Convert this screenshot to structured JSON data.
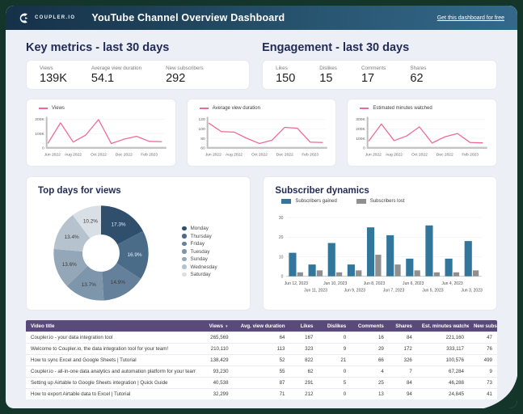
{
  "header": {
    "logo_text": "COUPLER.IO",
    "title": "YouTube Channel Overview Dashboard",
    "link_label": "Get this dashboard for free"
  },
  "colors": {
    "accent_pink": "#ec6a94",
    "bar_blue": "#33769b",
    "bar_gray": "#8f8f8f",
    "table_header": "#5a4a79",
    "frame_green": "#14362a",
    "title_navy": "#222c57"
  },
  "key_metrics": {
    "title": "Key metrics - last 30 days",
    "metrics": [
      {
        "label": "Views",
        "value": "139K"
      },
      {
        "label": "Average view duration",
        "value": "54.1"
      },
      {
        "label": "New subscribers",
        "value": "292"
      }
    ]
  },
  "engagement": {
    "title": "Engagement - last 30 days",
    "metrics": [
      {
        "label": "Likes",
        "value": "150"
      },
      {
        "label": "Dislikes",
        "value": "15"
      },
      {
        "label": "Comments",
        "value": "17"
      },
      {
        "label": "Shares",
        "value": "62"
      }
    ]
  },
  "chart_data": [
    {
      "type": "line",
      "title": "Views",
      "color": "#ec6a94",
      "x": [
        "Jun 2022",
        "Jul 2022",
        "Aug 2022",
        "Sep 2022",
        "Oct 2022",
        "Nov 2022",
        "Dec 2022",
        "Jan 2023",
        "Feb 2023",
        "Mar 2023"
      ],
      "values": [
        30000,
        175000,
        40000,
        90000,
        198000,
        30000,
        60000,
        80000,
        45000,
        43000
      ],
      "ylim": [
        0,
        200000
      ],
      "yticks": [
        0,
        100000,
        200000
      ],
      "ytick_labels": [
        "0",
        "100K",
        "200K"
      ],
      "xtick_idx": [
        0,
        2,
        4,
        6,
        8
      ],
      "xtick_labels": [
        "Jun 2022",
        "Aug 2022",
        "Oct 2022",
        "Dec 2022",
        "Feb 2023"
      ]
    },
    {
      "type": "line",
      "title": "Average view duration",
      "color": "#ec6a94",
      "x": [
        "Jun 2022",
        "Jul 2022",
        "Aug 2022",
        "Sep 2022",
        "Oct 2022",
        "Nov 2022",
        "Dec 2022",
        "Jan 2023",
        "Feb 2023",
        "Mar 2023"
      ],
      "values": [
        112,
        94,
        93,
        80,
        69,
        76,
        103,
        101,
        72,
        71
      ],
      "ylim": [
        60,
        120
      ],
      "yticks": [
        60,
        80,
        100,
        120
      ],
      "ytick_labels": [
        "60",
        "80",
        "100",
        "120"
      ],
      "xtick_idx": [
        0,
        2,
        4,
        6,
        8
      ],
      "xtick_labels": [
        "Jun 2022",
        "Aug 2022",
        "Oct 2022",
        "Dec 2022",
        "Feb 2023"
      ]
    },
    {
      "type": "line",
      "title": "Estimated minutes watched",
      "color": "#ec6a94",
      "x": [
        "Jun 2022",
        "Jul 2022",
        "Aug 2022",
        "Sep 2022",
        "Oct 2022",
        "Nov 2022",
        "Dec 2022",
        "Jan 2023",
        "Feb 2023",
        "Mar 2023"
      ],
      "values": [
        70000,
        250000,
        75000,
        125000,
        220000,
        50000,
        115000,
        150000,
        55000,
        52000
      ],
      "ylim": [
        0,
        300000
      ],
      "yticks": [
        0,
        100000,
        200000,
        300000
      ],
      "ytick_labels": [
        "0",
        "100K",
        "200K",
        "300K"
      ],
      "xtick_idx": [
        0,
        2,
        4,
        6,
        8
      ],
      "xtick_labels": [
        "Jun 2022",
        "Aug 2022",
        "Oct 2022",
        "Dec 2022",
        "Feb 2023"
      ]
    },
    {
      "type": "pie",
      "title": "Top days for views",
      "labels": [
        "Monday",
        "Thursday",
        "Friday",
        "Tuesday",
        "Sunday",
        "Wednesday",
        "Saturday"
      ],
      "values": [
        17.3,
        16.9,
        14.9,
        13.7,
        13.6,
        13.4,
        10.2
      ],
      "value_labels": [
        "17.3%",
        "16.9%",
        "14.9%",
        "13.7%",
        "13.6%",
        "13.4%",
        "10.2%"
      ],
      "colors": [
        "#2f4f6d",
        "#4a6c88",
        "#64809a",
        "#7e96ab",
        "#93a7b8",
        "#b6c3cf",
        "#d8dfe5"
      ],
      "donut": true
    },
    {
      "type": "bar",
      "title": "Subscriber dynamics",
      "categories": [
        "Jun 12, 2023",
        "Jun 11, 2023",
        "Jun 10, 2023",
        "Jun 9, 2023",
        "Jun 8, 2023",
        "Jun 7, 2023",
        "Jun 6, 2023",
        "Jun 5, 2023",
        "Jun 4, 2023",
        "Jun 3, 2023"
      ],
      "series": [
        {
          "name": "Subscribers gained",
          "color": "#33769b",
          "values": [
            12,
            6,
            17,
            6,
            25,
            21,
            9,
            26,
            9,
            18
          ]
        },
        {
          "name": "Subscribers lost",
          "color": "#8f8f8f",
          "values": [
            2,
            3,
            2,
            3,
            11,
            6,
            3,
            2,
            2,
            3
          ]
        }
      ],
      "ylim": [
        0,
        30
      ],
      "yticks": [
        0,
        10,
        20,
        30
      ]
    }
  ],
  "table": {
    "columns": [
      {
        "label": "Video title",
        "sort": false
      },
      {
        "label": "Views",
        "sort": true
      },
      {
        "label": "Avg. view duration",
        "sort": false
      },
      {
        "label": "Likes",
        "sort": false
      },
      {
        "label": "Dislikes",
        "sort": false
      },
      {
        "label": "Comments",
        "sort": false
      },
      {
        "label": "Shares",
        "sort": false
      },
      {
        "label": "Est. minutes watched",
        "sort": false
      },
      {
        "label": "New subs",
        "sort": false
      }
    ],
    "sort_icon": "▼",
    "rows": [
      [
        "Coupler.io - your data integration tool",
        "265,569",
        "64",
        "167",
        "0",
        "16",
        "84",
        "221,160",
        "47"
      ],
      [
        "Welcome to Coupler.io, the data integration tool for your team!",
        "210,110",
        "113",
        "323",
        "9",
        "29",
        "172",
        "333,117",
        "76"
      ],
      [
        "How to sync Excel and Google Sheets | Tutorial",
        "138,429",
        "52",
        "822",
        "21",
        "66",
        "326",
        "100,576",
        "499"
      ],
      [
        "Coupler.io - all-in-one data analytics and automation platform for your team",
        "93,230",
        "55",
        "62",
        "0",
        "4",
        "7",
        "67,284",
        "9"
      ],
      [
        "Setting up Airtable to Google Sheets integration | Quick Guide",
        "40,538",
        "87",
        "291",
        "5",
        "25",
        "84",
        "46,288",
        "73"
      ],
      [
        "How to export Airtable data to Excel | Tutorial",
        "32,299",
        "71",
        "212",
        "0",
        "13",
        "94",
        "24,845",
        "41"
      ]
    ]
  }
}
